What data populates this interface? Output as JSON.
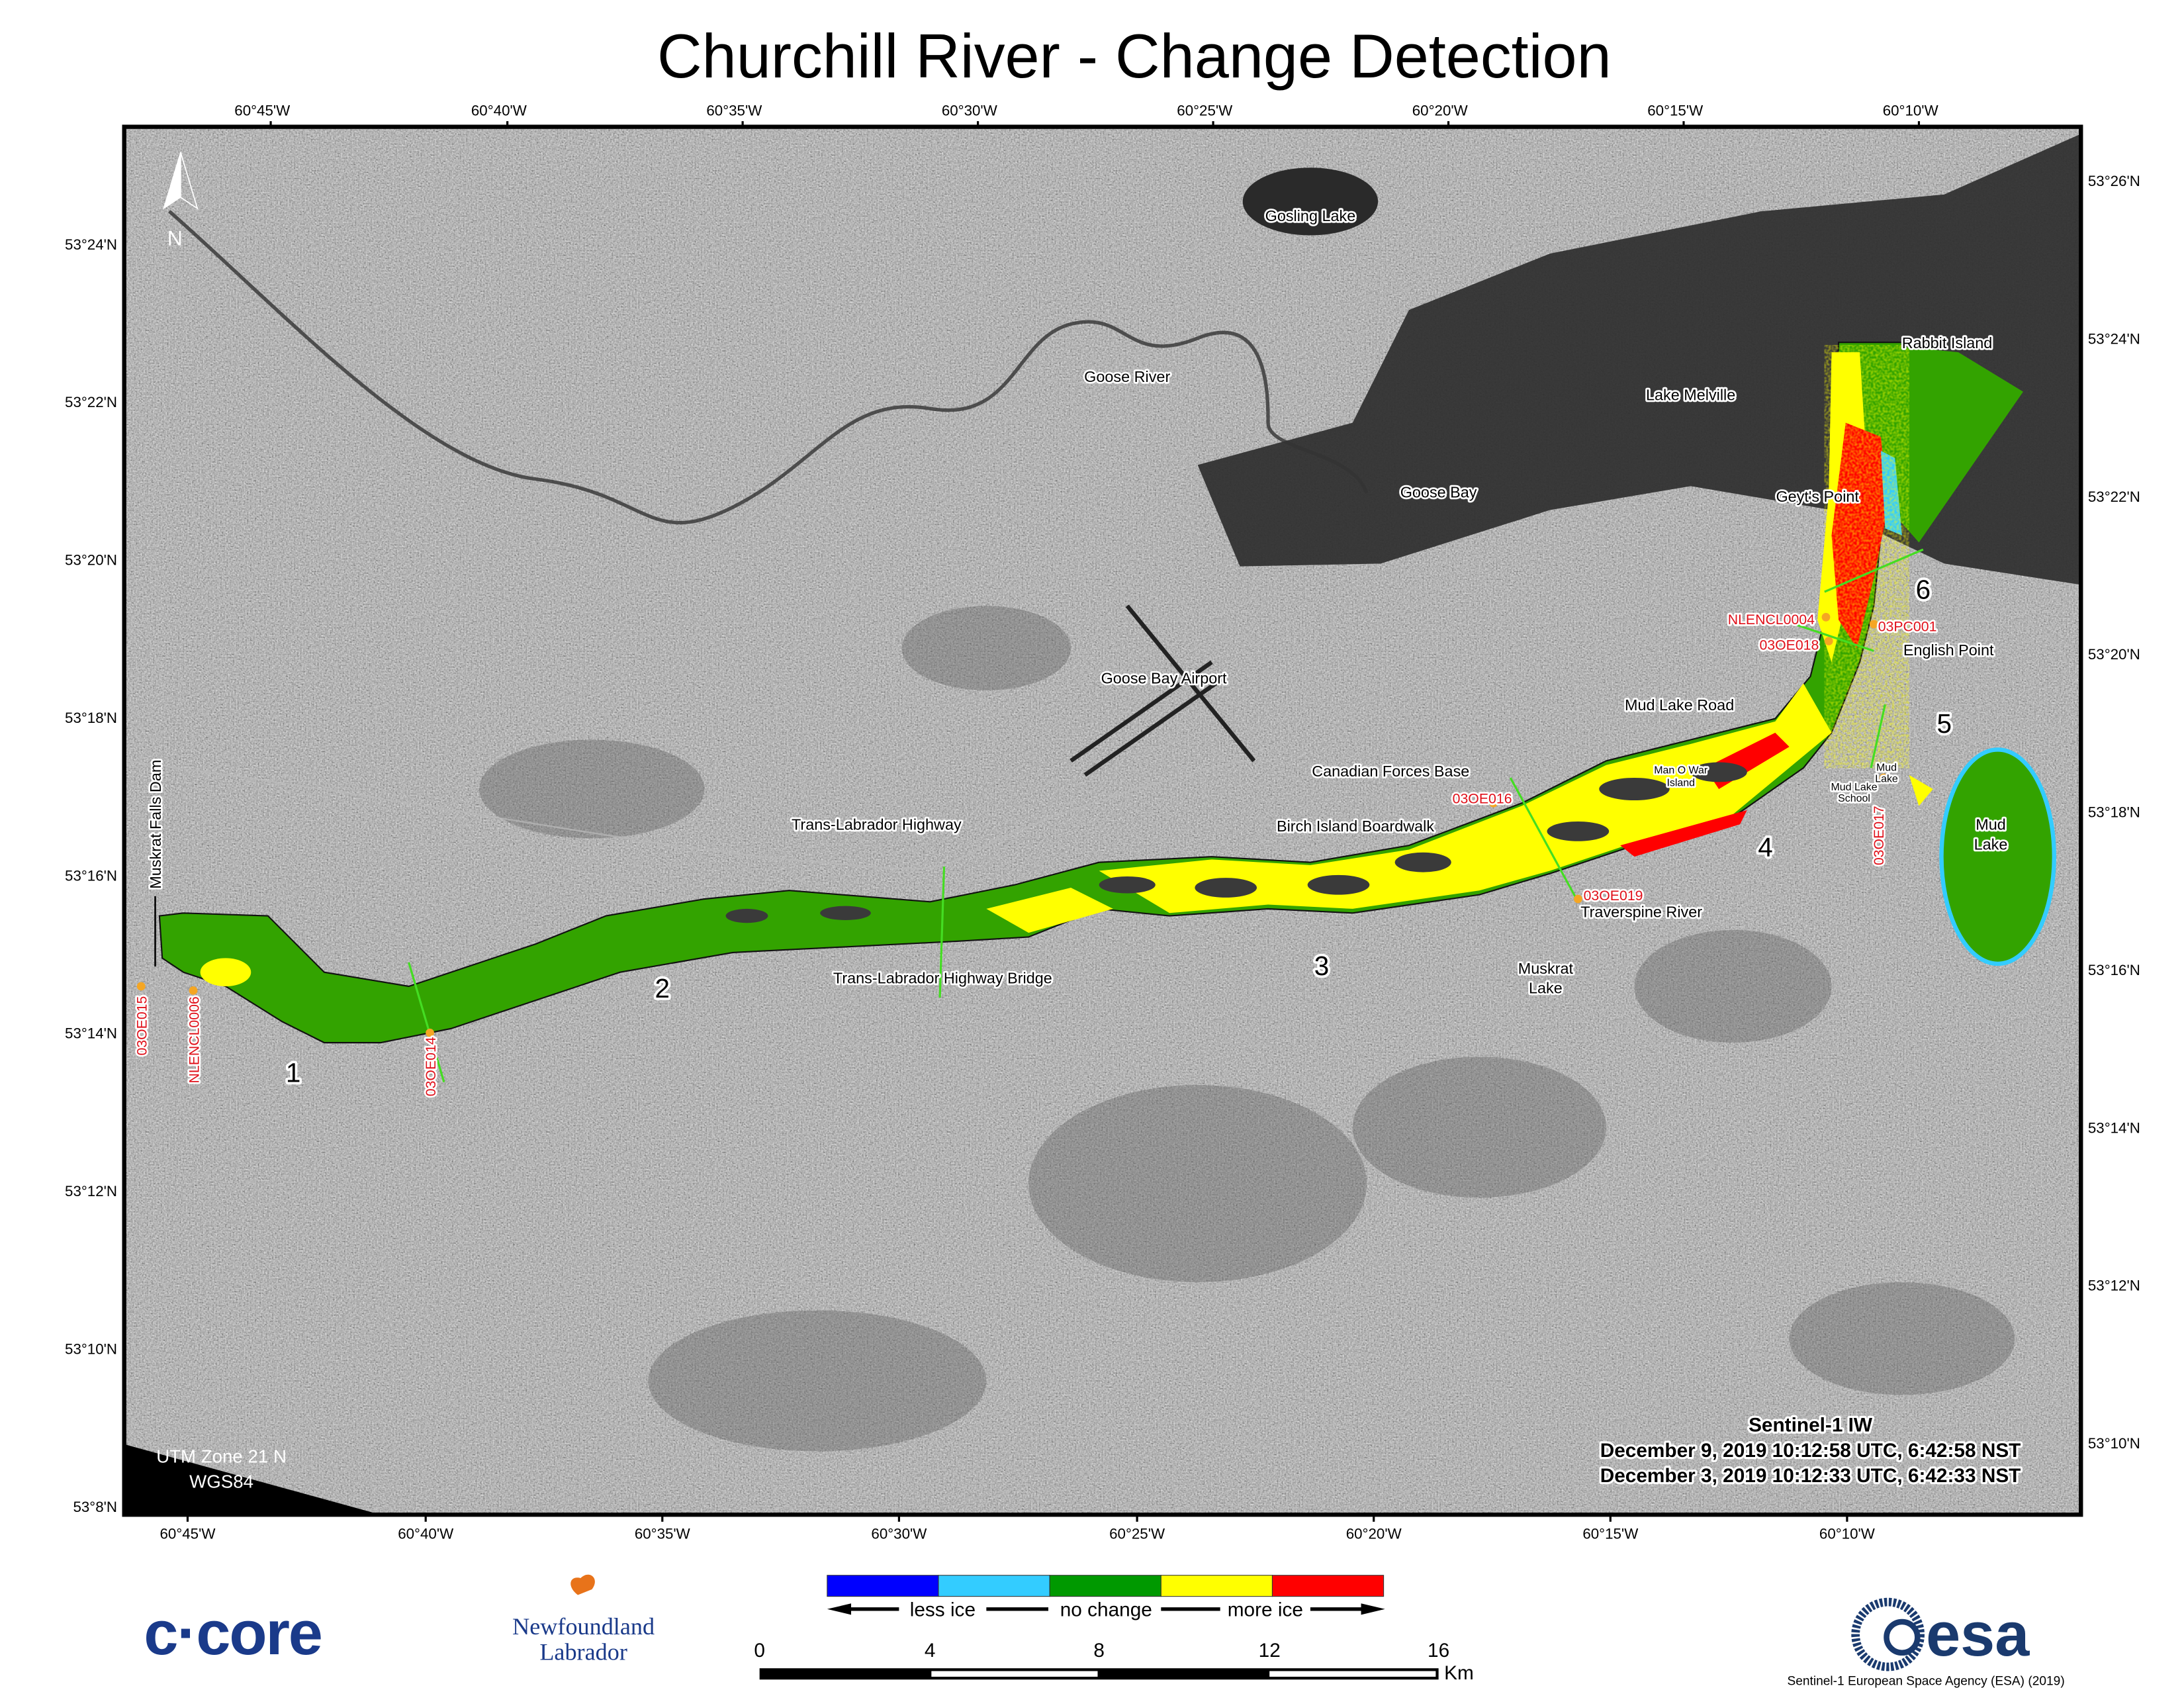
{
  "title": "Churchill River - Change Detection",
  "north_arrow": {
    "label": "N",
    "icon": "north-arrow-icon"
  },
  "axes": {
    "top_longitude_ticks": [
      "60°45'W",
      "60°40'W",
      "60°35'W",
      "60°30'W",
      "60°25'W",
      "60°20'W",
      "60°15'W",
      "60°10'W"
    ],
    "bottom_longitude_ticks": [
      "60°45'W",
      "60°40'W",
      "60°35'W",
      "60°30'W",
      "60°25'W",
      "60°20'W",
      "60°15'W",
      "60°10'W"
    ],
    "left_latitude_ticks": [
      "53°24'N",
      "53°22'N",
      "53°20'N",
      "53°18'N",
      "53°16'N",
      "53°14'N",
      "53°12'N",
      "53°10'N",
      "53°8'N"
    ],
    "right_latitude_ticks": [
      "53°26'N",
      "53°24'N",
      "53°22'N",
      "53°20'N",
      "53°18'N",
      "53°16'N",
      "53°14'N",
      "53°12'N",
      "53°10'N"
    ]
  },
  "places": [
    "Gosling Lake",
    "Goose River",
    "Lake Melville",
    "Rabbit Island",
    "Goose Bay",
    "Geyt's Point",
    "Goose Bay Airport",
    "Mud Lake Road",
    "English Point",
    "Canadian Forces Base",
    "Man O War",
    "Island",
    "Mud",
    "Lake",
    "Mud Lake",
    "School",
    "Mud",
    "Lake",
    "Trans-Labrador Highway",
    "Birch Island Boardwalk",
    "Traverspine River",
    "Trans-Labrador Highway Bridge",
    "Muskrat",
    "Lake",
    "Muskrat Falls Dam"
  ],
  "stations": [
    "NLENCL0004",
    "03OE018",
    "03PC001",
    "03OE016",
    "03OE019",
    "03OE017",
    "03OE015",
    "NLENCL0006",
    "03OE014"
  ],
  "sections": [
    "1",
    "2",
    "3",
    "4",
    "5",
    "6"
  ],
  "projection": {
    "zone": "UTM Zone 21 N",
    "datum": "WGS84"
  },
  "sensor": {
    "name": "Sentinel-1 IW",
    "date1": "December 9, 2019 10:12:58 UTC, 6:42:58 NST",
    "date2": "December 3, 2019 10:12:33 UTC, 6:42:33 NST"
  },
  "legend": {
    "colors": [
      "#0000ff",
      "#33ccff",
      "#009900",
      "#ffff00",
      "#ff0000"
    ],
    "labels": {
      "less": "less ice",
      "none": "no change",
      "more": "more ice"
    }
  },
  "scale_bar": {
    "ticks": [
      "0",
      "4",
      "8",
      "12",
      "16"
    ],
    "unit": "Km"
  },
  "logos": {
    "ccore": "c·core",
    "nl_line1": "Newfoundland",
    "nl_line2": "Labrador",
    "esa": "esa"
  },
  "credit": "Sentinel-1 European Space Agency (ESA) (2019)",
  "colors": {
    "no_change": "#33a300",
    "more_ice": "#ffff00",
    "much_more_ice": "#ff0000",
    "less_ice": "#33ccff",
    "station_marker": "#f5a623",
    "station_text": "#e0101a",
    "logo_blue": "#1a3a8a"
  }
}
